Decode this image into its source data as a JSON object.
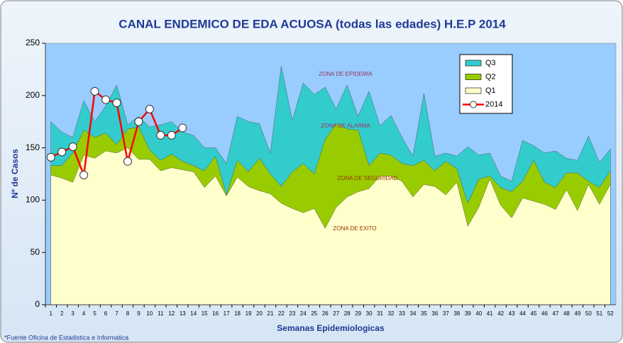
{
  "chart_data": {
    "type": "area",
    "title": "CANAL ENDEMICO DE EDA ACUOSA (todas las edades) H.E.P 2014",
    "y_label": "Nº de Casos",
    "x_label": "Semanas Epidemiologicas",
    "footnote": "*Fuente Oficina de Estadistica e Informatica",
    "annotations": [
      "ZONA DE EPIDEMIA",
      "ZONA DE ALARMA",
      "ZONA DE SEGURIDAD",
      "ZONA DE EXITO"
    ],
    "categories": [
      1,
      2,
      3,
      4,
      5,
      6,
      7,
      8,
      9,
      10,
      11,
      12,
      13,
      14,
      15,
      16,
      17,
      18,
      19,
      20,
      21,
      22,
      23,
      24,
      25,
      26,
      27,
      28,
      29,
      30,
      31,
      32,
      33,
      34,
      35,
      36,
      37,
      38,
      39,
      40,
      41,
      42,
      43,
      44,
      45,
      46,
      47,
      48,
      49,
      50,
      51,
      52
    ],
    "ylim": [
      0,
      250
    ],
    "yticks": [
      0,
      50,
      100,
      150,
      200,
      250
    ],
    "grid": false,
    "legend": "upper right",
    "background_color": "#99ccff",
    "series": [
      {
        "name": "Q3",
        "type": "area",
        "color": "#33cccc",
        "values": [
          175,
          165,
          160,
          195,
          175,
          190,
          210,
          172,
          180,
          170,
          172,
          175,
          165,
          162,
          150,
          150,
          135,
          180,
          175,
          173,
          145,
          228,
          176,
          212,
          201,
          208,
          187,
          210,
          180,
          204,
          171,
          181,
          160,
          142,
          202,
          142,
          145,
          142,
          151,
          143,
          145,
          123,
          118,
          157,
          152,
          145,
          147,
          140,
          138,
          161,
          136,
          149
        ]
      },
      {
        "name": "Q2",
        "type": "area",
        "color": "#99cc00",
        "values": [
          133,
          133,
          145,
          167,
          160,
          164,
          153,
          168,
          170,
          148,
          138,
          144,
          137,
          133,
          128,
          142,
          105,
          138,
          127,
          140,
          125,
          113,
          127,
          135,
          125,
          158,
          173,
          168,
          167,
          133,
          145,
          143,
          135,
          133,
          138,
          128,
          137,
          130,
          97,
          120,
          123,
          112,
          108,
          118,
          138,
          117,
          112,
          126,
          126,
          118,
          112,
          128
        ]
      },
      {
        "name": "Q1",
        "type": "area",
        "color": "#ffffcc",
        "values": [
          124,
          121,
          117,
          143,
          140,
          147,
          145,
          150,
          139,
          139,
          128,
          131,
          129,
          127,
          112,
          123,
          104,
          122,
          113,
          109,
          106,
          97,
          92,
          88,
          92,
          73,
          93,
          103,
          108,
          111,
          123,
          123,
          118,
          103,
          115,
          113,
          105,
          117,
          75,
          93,
          120,
          95,
          83,
          102,
          99,
          96,
          91,
          110,
          90,
          115,
          96,
          115
        ]
      },
      {
        "name": "2014",
        "type": "line",
        "color": "#ff0000",
        "values": [
          141,
          146,
          151,
          124,
          204,
          196,
          193,
          137,
          175,
          187,
          162,
          162,
          169,
          null,
          null,
          null,
          null,
          null,
          null,
          null,
          null,
          null,
          null,
          null,
          null,
          null,
          null,
          null,
          null,
          null,
          null,
          null,
          null,
          null,
          null,
          null,
          null,
          null,
          null,
          null,
          null,
          null,
          null,
          null,
          null,
          null,
          null,
          null,
          null,
          null,
          null,
          null
        ]
      }
    ]
  }
}
